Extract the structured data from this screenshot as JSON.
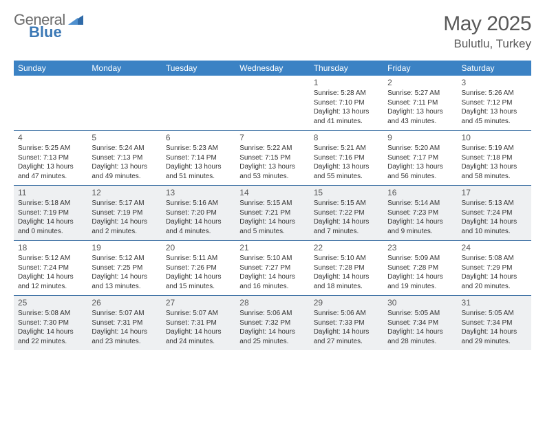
{
  "logo": {
    "word1": "General",
    "word2": "Blue"
  },
  "title": "May 2025",
  "location": "Bulutlu, Turkey",
  "colors": {
    "header_bg": "#3b82c4",
    "header_text": "#ffffff",
    "alt_row_bg": "#eef0f2",
    "cell_border": "#3b6fa3",
    "text": "#333333",
    "logo_grey": "#6d6d6d",
    "logo_blue": "#3b78b5"
  },
  "day_headers": [
    "Sunday",
    "Monday",
    "Tuesday",
    "Wednesday",
    "Thursday",
    "Friday",
    "Saturday"
  ],
  "weeks": [
    {
      "alt": false,
      "days": [
        null,
        null,
        null,
        null,
        {
          "n": "1",
          "sr": "5:28 AM",
          "ss": "7:10 PM",
          "d1": "13 hours",
          "d2": "41 minutes."
        },
        {
          "n": "2",
          "sr": "5:27 AM",
          "ss": "7:11 PM",
          "d1": "13 hours",
          "d2": "43 minutes."
        },
        {
          "n": "3",
          "sr": "5:26 AM",
          "ss": "7:12 PM",
          "d1": "13 hours",
          "d2": "45 minutes."
        }
      ]
    },
    {
      "alt": false,
      "days": [
        {
          "n": "4",
          "sr": "5:25 AM",
          "ss": "7:13 PM",
          "d1": "13 hours",
          "d2": "47 minutes."
        },
        {
          "n": "5",
          "sr": "5:24 AM",
          "ss": "7:13 PM",
          "d1": "13 hours",
          "d2": "49 minutes."
        },
        {
          "n": "6",
          "sr": "5:23 AM",
          "ss": "7:14 PM",
          "d1": "13 hours",
          "d2": "51 minutes."
        },
        {
          "n": "7",
          "sr": "5:22 AM",
          "ss": "7:15 PM",
          "d1": "13 hours",
          "d2": "53 minutes."
        },
        {
          "n": "8",
          "sr": "5:21 AM",
          "ss": "7:16 PM",
          "d1": "13 hours",
          "d2": "55 minutes."
        },
        {
          "n": "9",
          "sr": "5:20 AM",
          "ss": "7:17 PM",
          "d1": "13 hours",
          "d2": "56 minutes."
        },
        {
          "n": "10",
          "sr": "5:19 AM",
          "ss": "7:18 PM",
          "d1": "13 hours",
          "d2": "58 minutes."
        }
      ]
    },
    {
      "alt": true,
      "days": [
        {
          "n": "11",
          "sr": "5:18 AM",
          "ss": "7:19 PM",
          "d1": "14 hours",
          "d2": "0 minutes."
        },
        {
          "n": "12",
          "sr": "5:17 AM",
          "ss": "7:19 PM",
          "d1": "14 hours",
          "d2": "2 minutes."
        },
        {
          "n": "13",
          "sr": "5:16 AM",
          "ss": "7:20 PM",
          "d1": "14 hours",
          "d2": "4 minutes."
        },
        {
          "n": "14",
          "sr": "5:15 AM",
          "ss": "7:21 PM",
          "d1": "14 hours",
          "d2": "5 minutes."
        },
        {
          "n": "15",
          "sr": "5:15 AM",
          "ss": "7:22 PM",
          "d1": "14 hours",
          "d2": "7 minutes."
        },
        {
          "n": "16",
          "sr": "5:14 AM",
          "ss": "7:23 PM",
          "d1": "14 hours",
          "d2": "9 minutes."
        },
        {
          "n": "17",
          "sr": "5:13 AM",
          "ss": "7:24 PM",
          "d1": "14 hours",
          "d2": "10 minutes."
        }
      ]
    },
    {
      "alt": false,
      "days": [
        {
          "n": "18",
          "sr": "5:12 AM",
          "ss": "7:24 PM",
          "d1": "14 hours",
          "d2": "12 minutes."
        },
        {
          "n": "19",
          "sr": "5:12 AM",
          "ss": "7:25 PM",
          "d1": "14 hours",
          "d2": "13 minutes."
        },
        {
          "n": "20",
          "sr": "5:11 AM",
          "ss": "7:26 PM",
          "d1": "14 hours",
          "d2": "15 minutes."
        },
        {
          "n": "21",
          "sr": "5:10 AM",
          "ss": "7:27 PM",
          "d1": "14 hours",
          "d2": "16 minutes."
        },
        {
          "n": "22",
          "sr": "5:10 AM",
          "ss": "7:28 PM",
          "d1": "14 hours",
          "d2": "18 minutes."
        },
        {
          "n": "23",
          "sr": "5:09 AM",
          "ss": "7:28 PM",
          "d1": "14 hours",
          "d2": "19 minutes."
        },
        {
          "n": "24",
          "sr": "5:08 AM",
          "ss": "7:29 PM",
          "d1": "14 hours",
          "d2": "20 minutes."
        }
      ]
    },
    {
      "alt": true,
      "days": [
        {
          "n": "25",
          "sr": "5:08 AM",
          "ss": "7:30 PM",
          "d1": "14 hours",
          "d2": "22 minutes."
        },
        {
          "n": "26",
          "sr": "5:07 AM",
          "ss": "7:31 PM",
          "d1": "14 hours",
          "d2": "23 minutes."
        },
        {
          "n": "27",
          "sr": "5:07 AM",
          "ss": "7:31 PM",
          "d1": "14 hours",
          "d2": "24 minutes."
        },
        {
          "n": "28",
          "sr": "5:06 AM",
          "ss": "7:32 PM",
          "d1": "14 hours",
          "d2": "25 minutes."
        },
        {
          "n": "29",
          "sr": "5:06 AM",
          "ss": "7:33 PM",
          "d1": "14 hours",
          "d2": "27 minutes."
        },
        {
          "n": "30",
          "sr": "5:05 AM",
          "ss": "7:34 PM",
          "d1": "14 hours",
          "d2": "28 minutes."
        },
        {
          "n": "31",
          "sr": "5:05 AM",
          "ss": "7:34 PM",
          "d1": "14 hours",
          "d2": "29 minutes."
        }
      ]
    }
  ],
  "labels": {
    "sunrise": "Sunrise:",
    "sunset": "Sunset:",
    "daylight": "Daylight:",
    "and": "and"
  }
}
